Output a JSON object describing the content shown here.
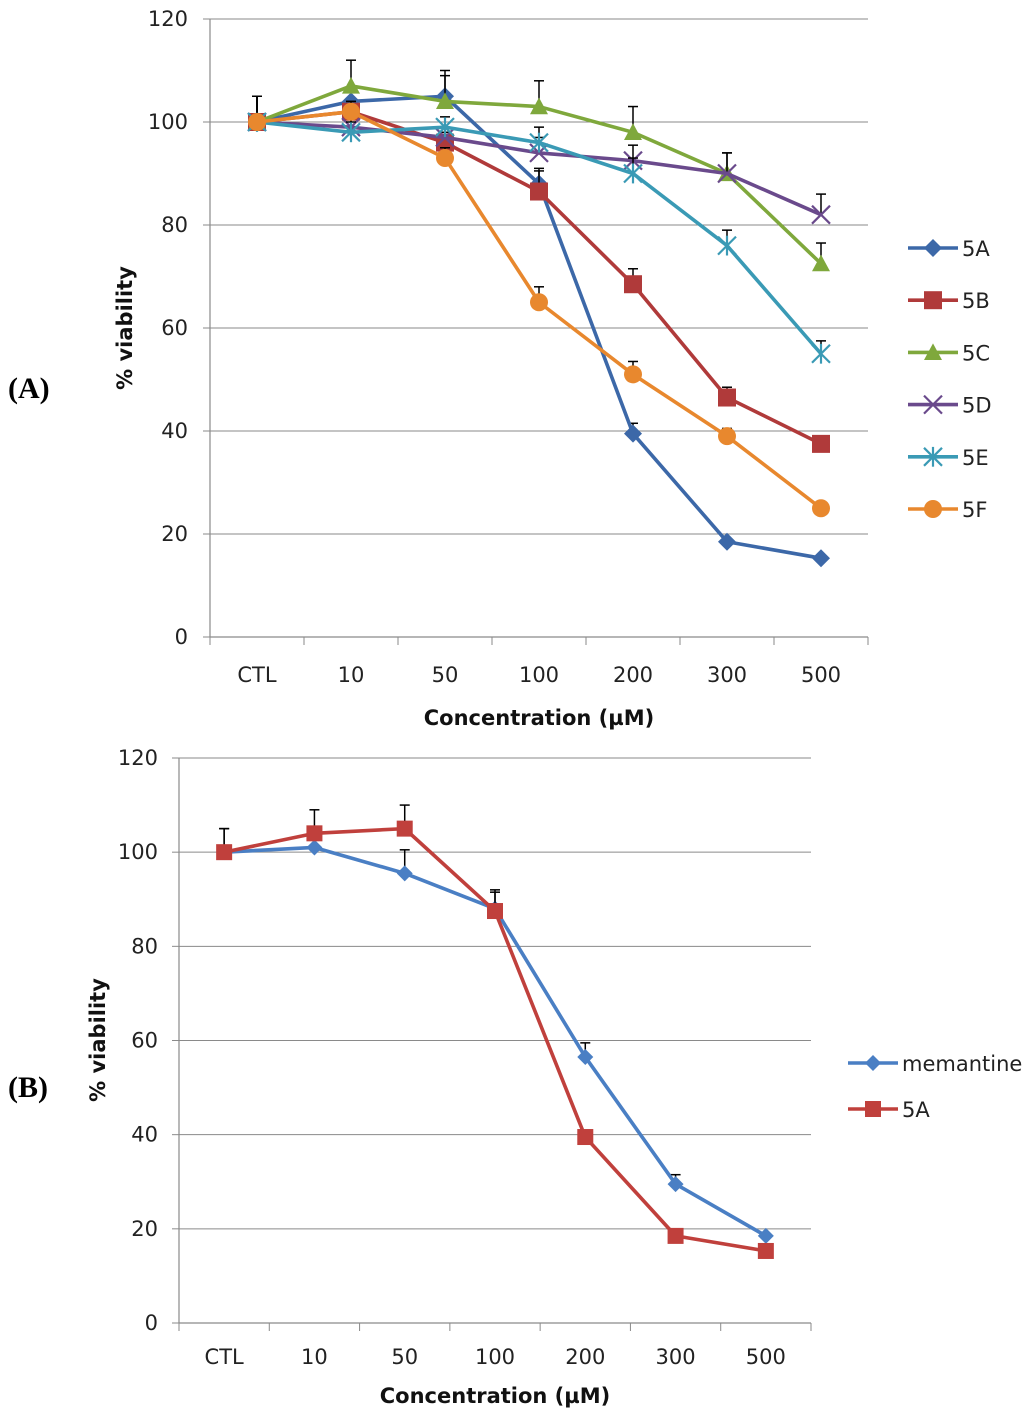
{
  "chart_data": [
    {
      "type": "line",
      "panel_label": "(A)",
      "xlabel": "Concentration (µM)",
      "ylabel": "% viability",
      "categories": [
        "CTL",
        "10",
        "50",
        "100",
        "200",
        "300",
        "500"
      ],
      "ylim": [
        0,
        120
      ],
      "yticks": [
        "0",
        "20",
        "40",
        "60",
        "80",
        "100",
        "120"
      ],
      "ytick_values": [
        0,
        20,
        40,
        60,
        80,
        100,
        120
      ],
      "grid": true,
      "legend_position": "right",
      "series": [
        {
          "name": "5A",
          "color": "#3c68a8",
          "marker": "diamond",
          "values": [
            100,
            104,
            105,
            88,
            39.5,
            18.5,
            15.3
          ],
          "errors": [
            5,
            2,
            5,
            3,
            2,
            0,
            0
          ]
        },
        {
          "name": "5B",
          "color": "#b03a3a",
          "marker": "square",
          "values": [
            100,
            102,
            96,
            86.5,
            68.5,
            46.5,
            37.5
          ],
          "errors": [
            5,
            2,
            2,
            4,
            3,
            2,
            0
          ]
        },
        {
          "name": "5C",
          "color": "#7fa83c",
          "marker": "triangle",
          "values": [
            100,
            107,
            104,
            103,
            98,
            90,
            72.5
          ],
          "errors": [
            5,
            5,
            5,
            5,
            5,
            4,
            4
          ]
        },
        {
          "name": "5D",
          "color": "#6a4a8c",
          "marker": "x",
          "values": [
            100,
            99,
            97,
            94,
            92.5,
            90,
            82
          ],
          "errors": [
            5,
            2,
            2,
            3,
            3,
            4,
            4
          ]
        },
        {
          "name": "5E",
          "color": "#3a9ab5",
          "marker": "star",
          "values": [
            100,
            98,
            99,
            96,
            90,
            76,
            55
          ],
          "errors": [
            5,
            2,
            2,
            3,
            3,
            3,
            2.5
          ]
        },
        {
          "name": "5F",
          "color": "#e8882e",
          "marker": "circle",
          "values": [
            100,
            102,
            93,
            65,
            51,
            39,
            25
          ],
          "errors": [
            5,
            2,
            2,
            3,
            2.5,
            1.5,
            0
          ]
        }
      ]
    },
    {
      "type": "line",
      "panel_label": "(B)",
      "xlabel": "Concentration (µM)",
      "ylabel": "% viability",
      "categories": [
        "CTL",
        "10",
        "50",
        "100",
        "200",
        "300",
        "500"
      ],
      "ylim": [
        0,
        120
      ],
      "yticks": [
        "0",
        "20",
        "40",
        "60",
        "80",
        "100",
        "120"
      ],
      "ytick_values": [
        0,
        20,
        40,
        60,
        80,
        100,
        120
      ],
      "grid": true,
      "legend_position": "right",
      "series": [
        {
          "name": "memantine",
          "color": "#4a7fc4",
          "marker": "diamond",
          "values": [
            100,
            101,
            95.5,
            88,
            56.5,
            29.5,
            18.5
          ],
          "errors": [
            5,
            2,
            5,
            4,
            3,
            2,
            0
          ]
        },
        {
          "name": "5A",
          "color": "#c0403c",
          "marker": "square",
          "values": [
            100,
            104,
            105,
            87.5,
            39.5,
            18.5,
            15.3
          ],
          "errors": [
            5,
            5,
            5,
            4,
            0,
            0,
            0
          ]
        }
      ]
    }
  ]
}
